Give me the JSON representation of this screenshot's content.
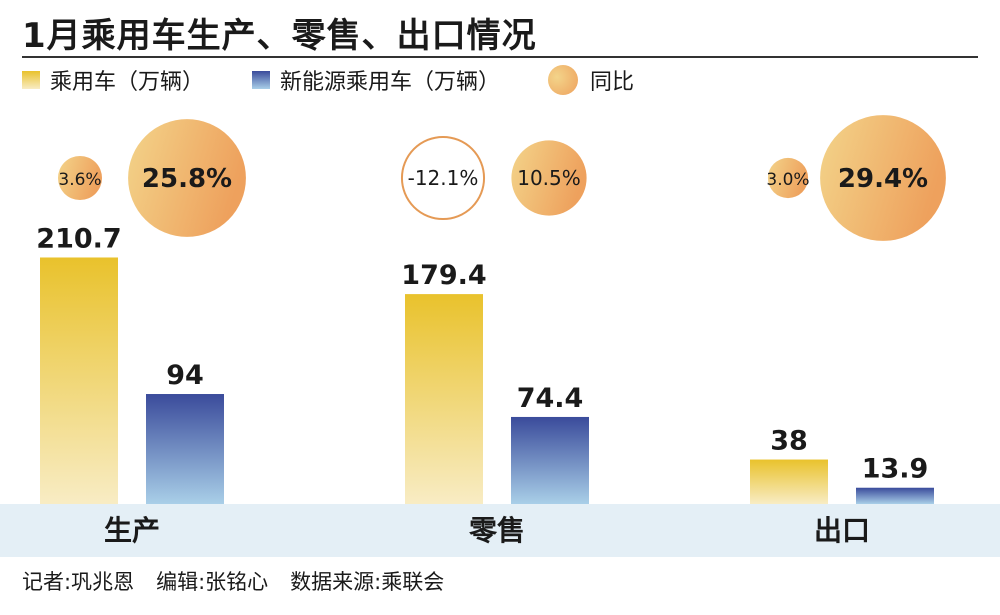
{
  "title": "1月乘用车生产、零售、出口情况",
  "legend": {
    "series1": "乘用车（万辆）",
    "series2": "新能源乘用车（万辆）",
    "yoy": "同比"
  },
  "footer": {
    "reporter": "记者:巩兆恩",
    "editor": "编辑:张铭心",
    "source": "数据来源:乘联会"
  },
  "colors": {
    "yellow_top": "#e9c22c",
    "yellow_bottom": "#f8ecc4",
    "blue_top": "#3a4b9b",
    "blue_bottom": "#a9cfe8",
    "bubble_light": "#f3d48a",
    "bubble_dark": "#eea15d",
    "negative_stroke": "#e59a55",
    "band": "#e4eff6"
  },
  "chart_data": {
    "type": "bar",
    "title": "1月乘用车生产、零售、出口情况",
    "categories": [
      "生产",
      "零售",
      "出口"
    ],
    "series": [
      {
        "name": "乘用车（万辆）",
        "values": [
          210.7,
          179.4,
          38
        ],
        "labels": [
          "210.7",
          "179.4",
          "38"
        ]
      },
      {
        "name": "新能源乘用车（万辆）",
        "values": [
          94,
          74.4,
          13.9
        ],
        "labels": [
          "94",
          "74.4",
          "13.9"
        ]
      }
    ],
    "yoy": {
      "name": "同比",
      "series1": [
        3.6,
        -12.1,
        3.0
      ],
      "series2": [
        25.8,
        10.5,
        29.4
      ],
      "series1_labels": [
        "3.6%",
        "-12.1%",
        "3.0%"
      ],
      "series2_labels": [
        "25.8%",
        "10.5%",
        "29.4%"
      ]
    },
    "legend_position": "top-left",
    "grid": false
  }
}
